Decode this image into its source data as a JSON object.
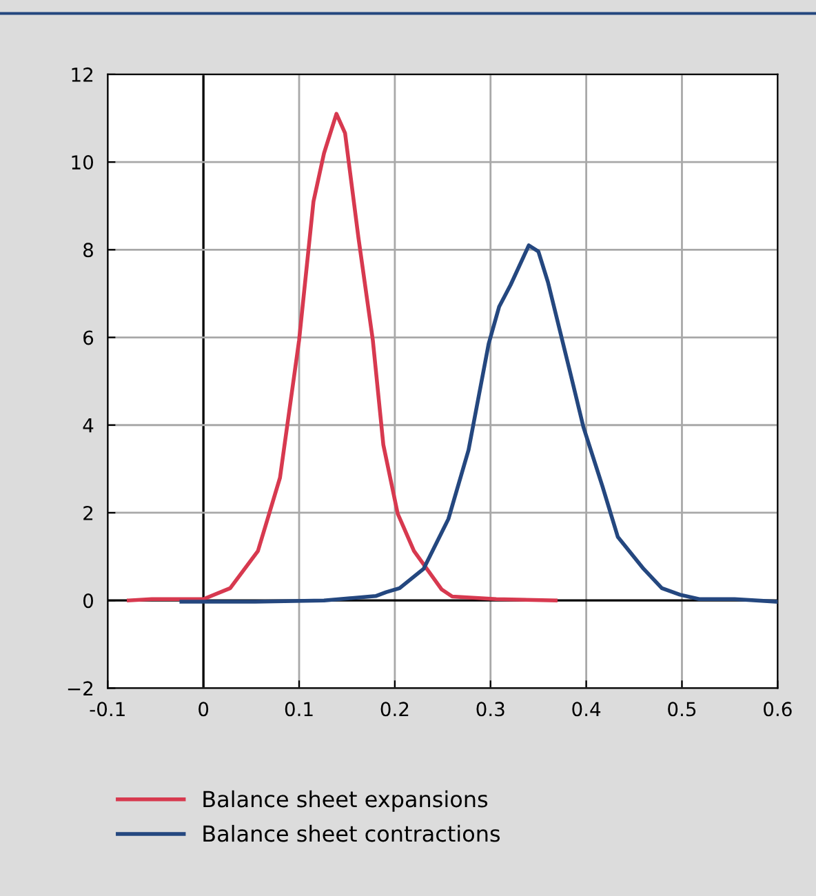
{
  "chart_data": {
    "type": "line",
    "xlim": [
      -0.1,
      0.6
    ],
    "ylim": [
      -2,
      12
    ],
    "xticks": [
      {
        "value": -0.1,
        "label": "-0.1"
      },
      0,
      0.1,
      0.2,
      0.3,
      0.4,
      0.5,
      0.6
    ],
    "yticks": [
      {
        "value": -2,
        "label": "−2"
      },
      0,
      2,
      4,
      6,
      8,
      10,
      12
    ],
    "grid": true,
    "legend": "bottom",
    "series": [
      {
        "name": "Balance sheet expansions",
        "color": "#d7394f",
        "x": [
          -0.078,
          -0.054,
          0.0,
          0.028,
          0.057,
          0.08,
          0.1,
          0.115,
          0.126,
          0.139,
          0.148,
          0.162,
          0.177,
          0.188,
          0.203,
          0.22,
          0.249,
          0.26,
          0.306,
          0.368
        ],
        "values": [
          0,
          0.03,
          0.03,
          0.28,
          1.13,
          2.8,
          5.94,
          9.1,
          10.2,
          11.1,
          10.66,
          8.27,
          5.94,
          3.55,
          1.98,
          1.13,
          0.25,
          0.09,
          0.03,
          0
        ]
      },
      {
        "name": "Balance sheet contractions",
        "color": "#24477f",
        "x": [
          -0.023,
          0.054,
          0.126,
          0.18,
          0.191,
          0.205,
          0.23,
          0.256,
          0.277,
          0.298,
          0.309,
          0.321,
          0.34,
          0.35,
          0.36,
          0.383,
          0.397,
          0.417,
          0.433,
          0.46,
          0.479,
          0.498,
          0.518,
          0.555,
          0.6
        ],
        "values": [
          -0.03,
          -0.03,
          0,
          0.1,
          0.19,
          0.28,
          0.72,
          1.86,
          3.43,
          5.85,
          6.7,
          7.2,
          8.1,
          7.96,
          7.26,
          5.22,
          3.96,
          2.6,
          1.45,
          0.72,
          0.28,
          0.13,
          0.03,
          0.03,
          -0.03
        ]
      }
    ]
  }
}
